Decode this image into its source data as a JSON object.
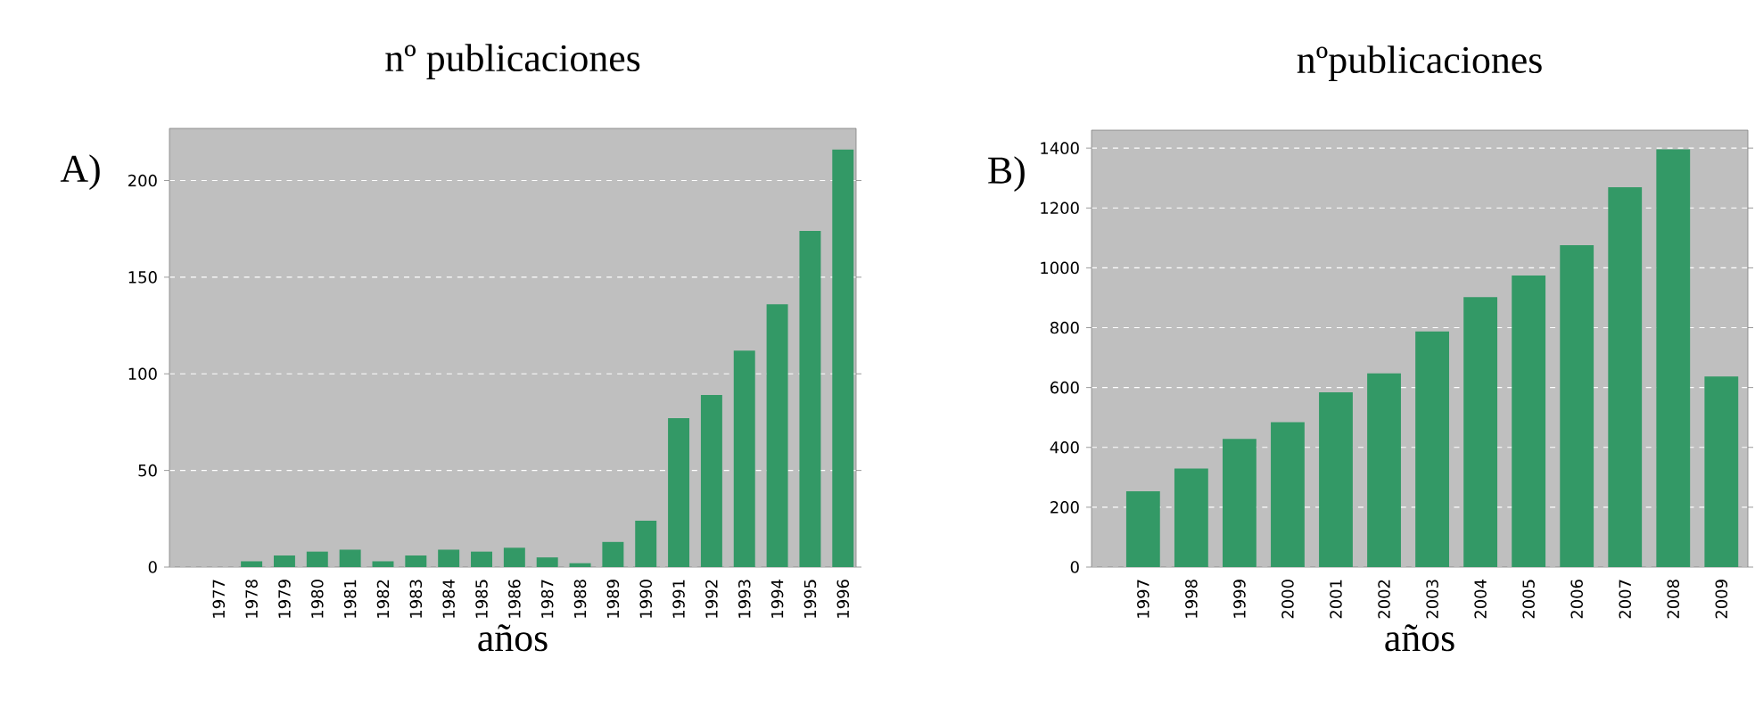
{
  "chart_data": [
    {
      "type": "bar",
      "title": "nº publicaciones",
      "xlabel": "años",
      "annotations": [
        "A)"
      ],
      "categories": [
        "1977",
        "1978",
        "1979",
        "1980",
        "1981",
        "1982",
        "1983",
        "1984",
        "1985",
        "1986",
        "1987",
        "1988",
        "1989",
        "1990",
        "1991",
        "1992",
        "1993",
        "1994",
        "1995",
        "1996"
      ],
      "values": [
        0,
        3,
        6,
        8,
        9,
        3,
        6,
        9,
        8,
        10,
        5,
        2,
        13,
        24,
        77,
        89,
        112,
        136,
        174,
        216
      ],
      "color": "#339966",
      "ylim": [
        0,
        227
      ],
      "yticks": [
        0,
        50,
        100,
        150,
        200
      ],
      "grid": "y"
    },
    {
      "type": "bar",
      "title": "nºpublicaciones",
      "xlabel": "años",
      "annotations": [
        "B)"
      ],
      "categories": [
        "1997",
        "1998",
        "1999",
        "2000",
        "2001",
        "2002",
        "2003",
        "2004",
        "2005",
        "2006",
        "2007",
        "2008",
        "2009"
      ],
      "values": [
        253,
        329,
        428,
        484,
        584,
        647,
        787,
        902,
        974,
        1076,
        1269,
        1396,
        637
      ],
      "color": "#339966",
      "ylim": [
        0,
        1460
      ],
      "yticks": [
        0,
        200,
        400,
        600,
        800,
        1000,
        1200,
        1400
      ],
      "grid": "y"
    }
  ]
}
